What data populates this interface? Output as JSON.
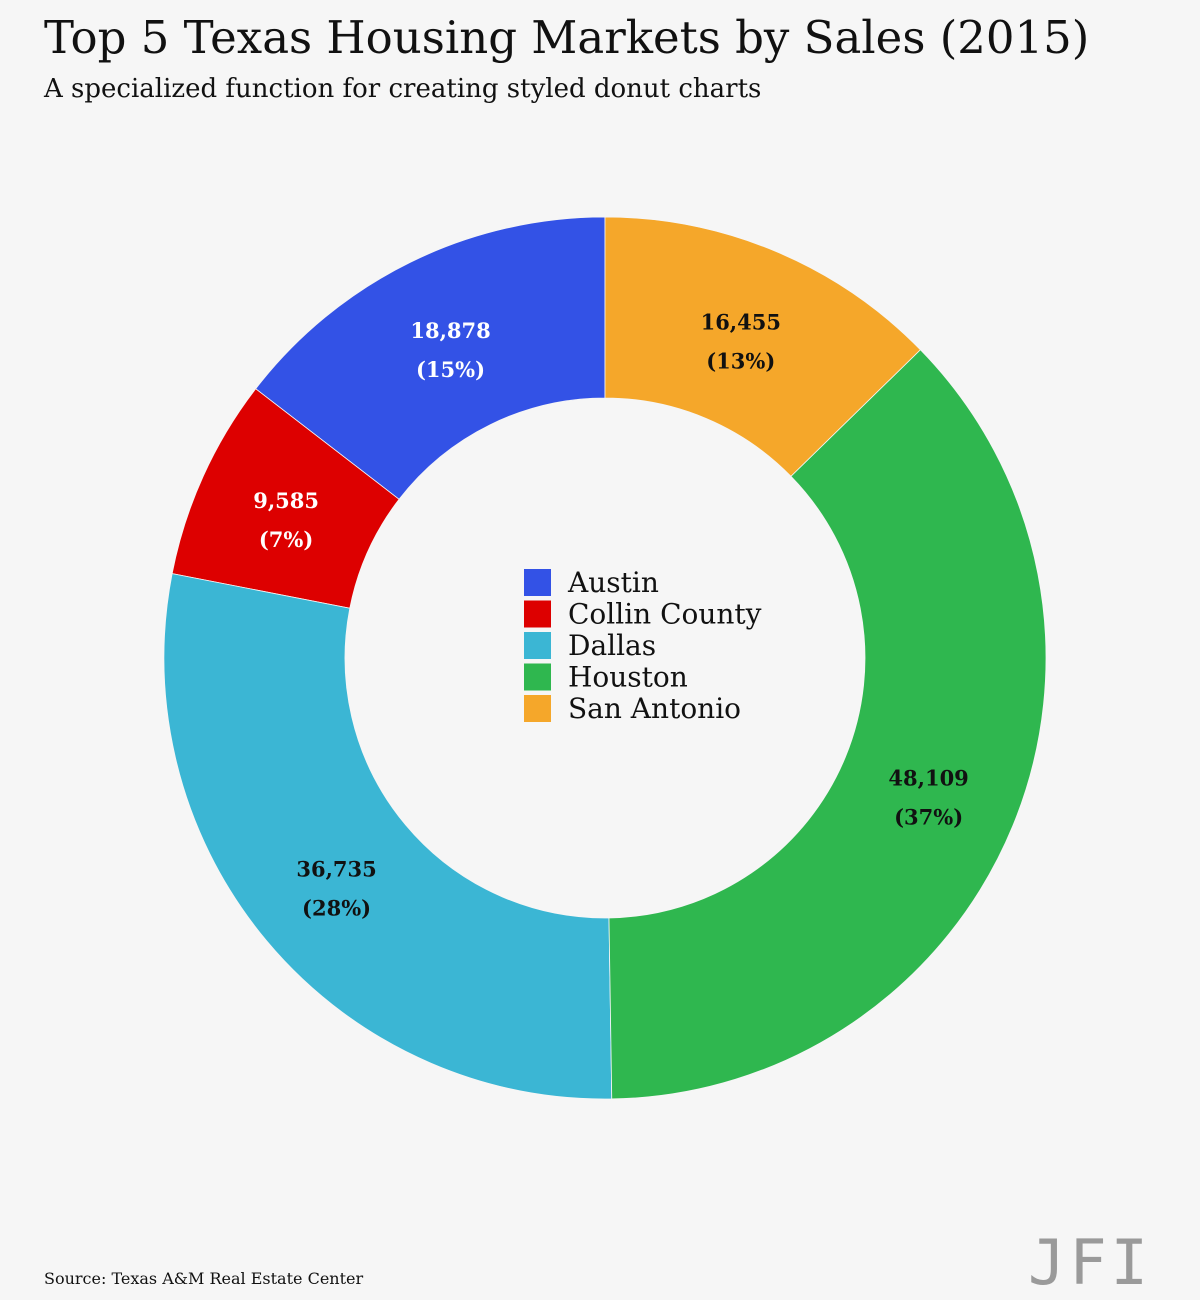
{
  "page": {
    "title": "Top 5 Texas Housing Markets by Sales (2015)",
    "subtitle": "A specialized function for creating styled donut charts",
    "source": "Source: Texas A&M Real Estate Center",
    "logo": "JFI"
  },
  "chart_data": {
    "type": "donut",
    "title": "Top 5 Texas Housing Markets by Sales (2015)",
    "subtitle": "A specialized function for creating styled donut charts",
    "legend_position": "center",
    "start_angle": "top",
    "direction": "counterclockwise",
    "slices": [
      {
        "name": "Austin",
        "value": 18878,
        "value_label": "18,878",
        "pct_label": "(15%)",
        "color": "#3352e6",
        "label_color": "#ffffff"
      },
      {
        "name": "Collin County",
        "value": 9585,
        "value_label": "9,585",
        "pct_label": "(7%)",
        "color": "#dd0000",
        "label_color": "#ffffff"
      },
      {
        "name": "Dallas",
        "value": 36735,
        "value_label": "36,735",
        "pct_label": "(28%)",
        "color": "#3bb6d4",
        "label_color": "#111111"
      },
      {
        "name": "Houston",
        "value": 48109,
        "value_label": "48,109",
        "pct_label": "(37%)",
        "color": "#2fb74f",
        "label_color": "#111111"
      },
      {
        "name": "San Antonio",
        "value": 16455,
        "value_label": "16,455",
        "pct_label": "(13%)",
        "color": "#f5a72a",
        "label_color": "#111111"
      }
    ]
  }
}
